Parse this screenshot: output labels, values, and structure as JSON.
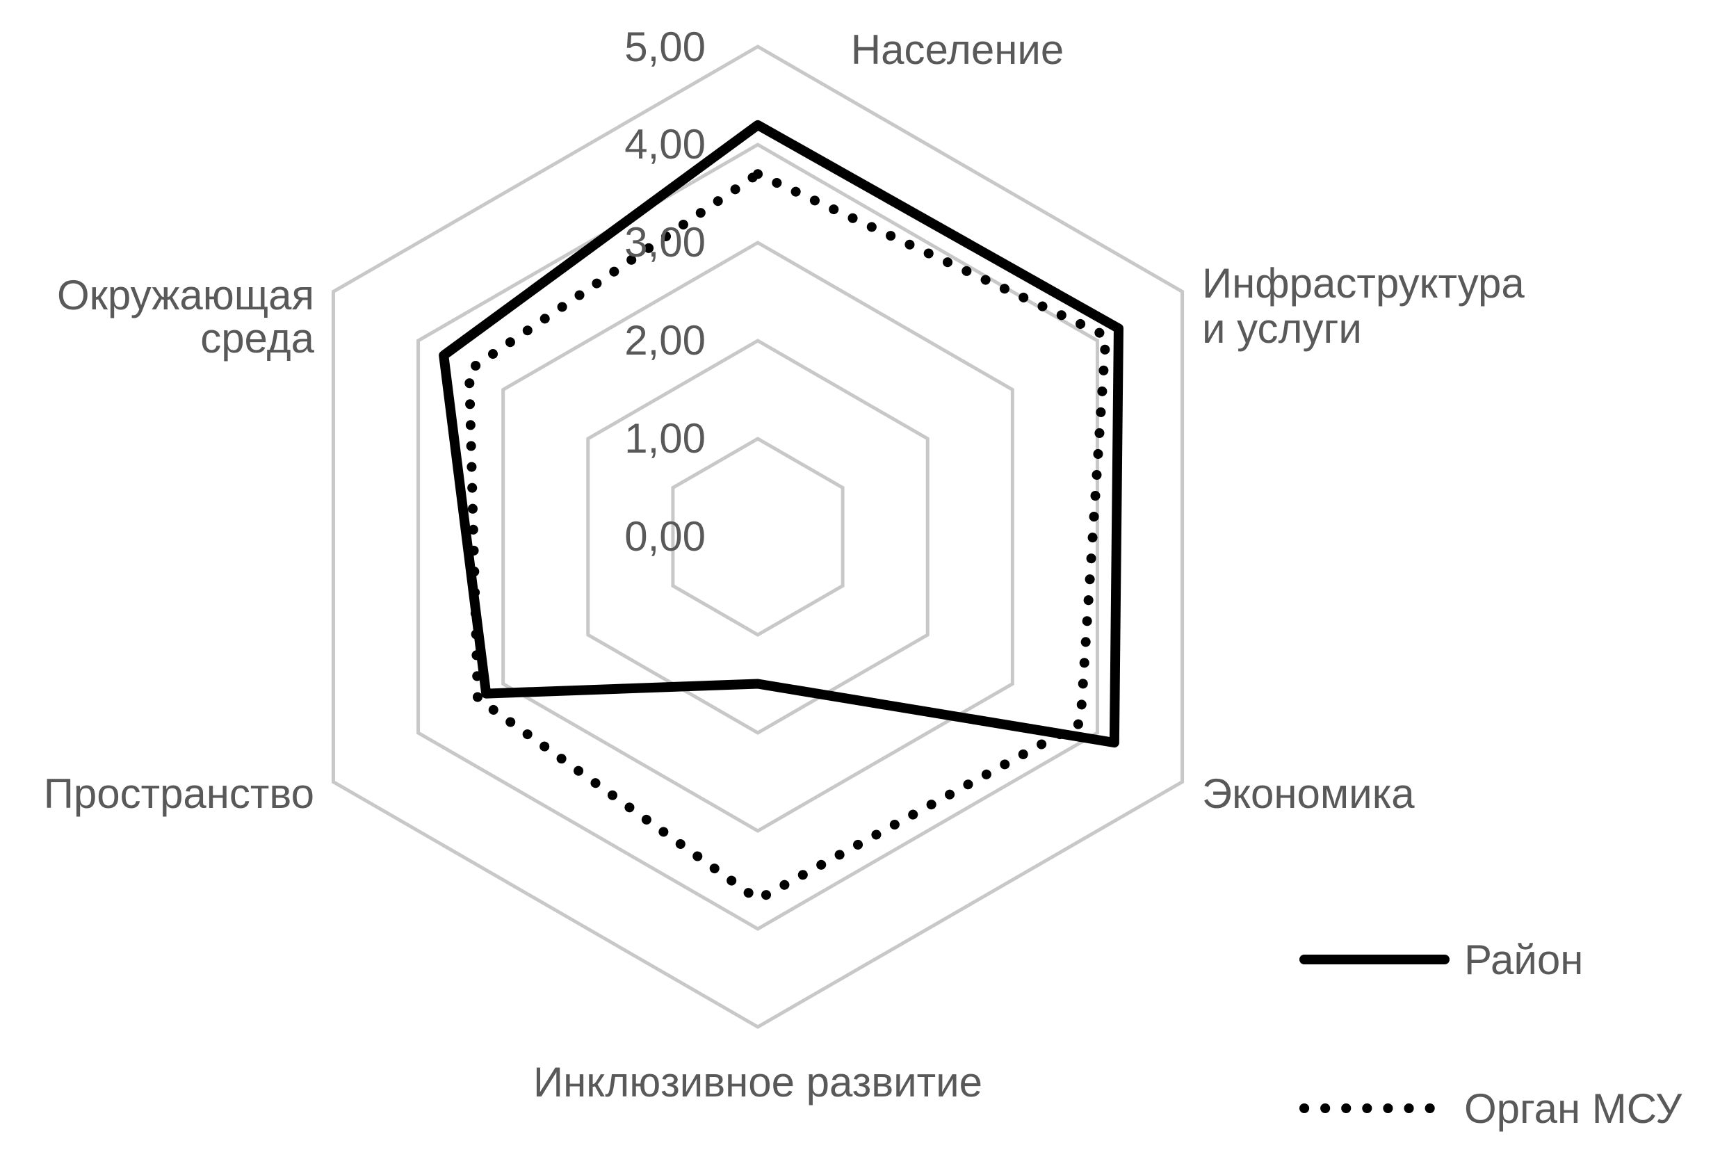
{
  "chart_data": {
    "type": "radar",
    "categories": [
      "Население",
      "Инфраструктура и услуги",
      "Экономика",
      "Инклюзивное развитие",
      "Пространство",
      "Окружающая среда"
    ],
    "category_lines": [
      [
        "Население"
      ],
      [
        "Инфраструктура",
        "и услуги"
      ],
      [
        "Экономика"
      ],
      [
        "Инклюзивное развитие"
      ],
      [
        "Пространство"
      ],
      [
        "Окружающая",
        "среда"
      ]
    ],
    "rlim": [
      0,
      5
    ],
    "ticks": [
      "0,00",
      "1,00",
      "2,00",
      "3,00",
      "4,00",
      "5,00"
    ],
    "grid": true,
    "legend_position": "bottom-right",
    "series": [
      {
        "name": "Район",
        "style": "solid",
        "color": "#000000",
        "values": [
          4.2,
          4.25,
          4.2,
          1.5,
          3.2,
          3.7
        ]
      },
      {
        "name": "Орган МСУ",
        "style": "dotted",
        "color": "#000000",
        "values": [
          3.7,
          4.1,
          3.8,
          3.7,
          3.3,
          3.4
        ]
      }
    ],
    "grid_color": "#c8c8c8",
    "text_color": "#595959"
  }
}
